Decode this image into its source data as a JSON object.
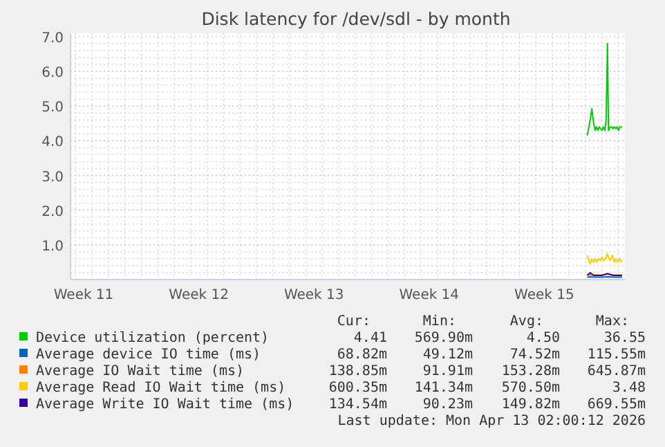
{
  "chart_data": {
    "type": "line",
    "title": "Disk latency for /dev/sdl - by month",
    "xlim": [
      "2026-03-11T16:48",
      "2026-04-14T09:36"
    ],
    "xticks": [
      {
        "value": "2026-03-12T12:00",
        "label": "Week 11"
      },
      {
        "value": "2026-03-19T12:00",
        "label": "Week 12"
      },
      {
        "value": "2026-03-26T12:00",
        "label": "Week 13"
      },
      {
        "value": "2026-04-02T12:00",
        "label": "Week 14"
      },
      {
        "value": "2026-04-09T12:00",
        "label": "Week 15"
      },
      {
        "value": "2026-03-12",
        "label": null
      },
      {
        "value": "2026-03-13",
        "label": null
      },
      {
        "value": "2026-03-14",
        "label": null
      },
      {
        "value": "2026-03-15",
        "label": null
      },
      {
        "value": "2026-03-16",
        "label": null
      },
      {
        "value": "2026-03-17",
        "label": null
      },
      {
        "value": "2026-03-18",
        "label": null
      },
      {
        "value": "2026-03-19",
        "label": null
      },
      {
        "value": "2026-03-20",
        "label": null
      },
      {
        "value": "2026-03-21",
        "label": null
      },
      {
        "value": "2026-03-22",
        "label": null
      },
      {
        "value": "2026-03-23",
        "label": null
      },
      {
        "value": "2026-03-24",
        "label": null
      },
      {
        "value": "2026-03-25",
        "label": null
      },
      {
        "value": "2026-03-26",
        "label": null
      },
      {
        "value": "2026-03-27",
        "label": null
      },
      {
        "value": "2026-03-28",
        "label": null
      },
      {
        "value": "2026-03-29",
        "label": null
      },
      {
        "value": "2026-03-30",
        "label": null
      },
      {
        "value": "2026-03-31",
        "label": null
      },
      {
        "value": "2026-04-01",
        "label": null
      },
      {
        "value": "2026-04-02",
        "label": null
      },
      {
        "value": "2026-04-03",
        "label": null
      },
      {
        "value": "2026-04-04",
        "label": null
      },
      {
        "value": "2026-04-05",
        "label": null
      },
      {
        "value": "2026-04-06",
        "label": null
      },
      {
        "value": "2026-04-07",
        "label": null
      },
      {
        "value": "2026-04-08",
        "label": null
      },
      {
        "value": "2026-04-09",
        "label": null
      },
      {
        "value": "2026-04-10",
        "label": null
      },
      {
        "value": "2026-04-11",
        "label": null
      },
      {
        "value": "2026-04-12",
        "label": null
      },
      {
        "value": "2026-04-13",
        "label": null
      },
      {
        "value": "2026-04-14",
        "label": null
      }
    ],
    "ylim": [
      0,
      7.1
    ],
    "yticks": [
      {
        "value": 1,
        "label": "1.0"
      },
      {
        "value": 2,
        "label": "2.0"
      },
      {
        "value": 3,
        "label": "3.0"
      },
      {
        "value": 4,
        "label": "4.0"
      },
      {
        "value": 5,
        "label": "5.0"
      },
      {
        "value": 6,
        "label": "6.0"
      },
      {
        "value": 7,
        "label": "7.0"
      },
      {
        "value": 0.2,
        "label": null
      },
      {
        "value": 0.4,
        "label": null
      },
      {
        "value": 0.6,
        "label": null
      },
      {
        "value": 0.8,
        "label": null
      },
      {
        "value": 1.2,
        "label": null
      },
      {
        "value": 1.4,
        "label": null
      },
      {
        "value": 1.6,
        "label": null
      },
      {
        "value": 1.8,
        "label": null
      },
      {
        "value": 2.2,
        "label": null
      },
      {
        "value": 2.4,
        "label": null
      },
      {
        "value": 2.6,
        "label": null
      },
      {
        "value": 2.8,
        "label": null
      },
      {
        "value": 3.2,
        "label": null
      },
      {
        "value": 3.4,
        "label": null
      },
      {
        "value": 3.6,
        "label": null
      },
      {
        "value": 3.8,
        "label": null
      },
      {
        "value": 4.2,
        "label": null
      },
      {
        "value": 4.4,
        "label": null
      },
      {
        "value": 4.6,
        "label": null
      },
      {
        "value": 4.8,
        "label": null
      },
      {
        "value": 5.2,
        "label": null
      },
      {
        "value": 5.4,
        "label": null
      },
      {
        "value": 5.6,
        "label": null
      },
      {
        "value": 5.8,
        "label": null
      },
      {
        "value": 6.2,
        "label": null
      },
      {
        "value": 6.4,
        "label": null
      },
      {
        "value": 6.6,
        "label": null
      },
      {
        "value": 6.8,
        "label": null
      }
    ],
    "grid": true,
    "legend": "bottom",
    "series": [
      {
        "name": "Device utilization (percent)",
        "color": "#00cc00",
        "x": [
          "2026-04-12T02:38",
          "2026-04-12T04:05",
          "2026-04-12T06:58",
          "2026-04-12T09:22",
          "2026-04-12T12:00",
          "2026-04-12T14:10",
          "2026-04-12T16:05",
          "2026-04-12T18:14",
          "2026-04-12T20:10",
          "2026-04-12T22:05",
          "2026-04-13T00:14",
          "2026-04-13T02:10",
          "2026-04-13T04:19",
          "2026-04-13T06:14",
          "2026-04-13T08:10",
          "2026-04-13T09:36",
          "2026-04-13T12:14",
          "2026-04-13T14:24",
          "2026-04-13T16:19",
          "2026-04-13T18:14",
          "2026-04-13T20:24",
          "2026-04-13T22:19",
          "2026-04-14T00:14",
          "2026-04-14T02:10",
          "2026-04-14T05:31"
        ],
        "values": [
          4.15,
          4.3,
          4.6,
          4.92,
          4.5,
          4.3,
          4.4,
          4.3,
          4.4,
          4.35,
          4.3,
          4.4,
          4.3,
          4.6,
          6.8,
          4.3,
          4.4,
          4.4,
          4.35,
          4.4,
          4.35,
          4.4,
          4.3,
          4.4,
          4.4
        ]
      },
      {
        "name": "Average device IO time (ms)",
        "color": "#0066b3",
        "x": [
          "2026-04-12T02:38",
          "2026-04-12T06:58",
          "2026-04-12T12:00",
          "2026-04-13T00:00",
          "2026-04-13T08:10",
          "2026-04-13T16:48",
          "2026-04-14T05:31"
        ],
        "values": [
          0.07,
          0.08,
          0.07,
          0.07,
          0.08,
          0.07,
          0.07
        ]
      },
      {
        "name": "Average IO Wait time (ms)",
        "color": "#ff8000",
        "x": [
          "2026-04-12T02:38",
          "2026-04-12T06:58",
          "2026-04-12T12:00",
          "2026-04-13T00:00",
          "2026-04-13T08:10",
          "2026-04-13T16:48",
          "2026-04-14T05:31"
        ],
        "values": [
          0.13,
          0.14,
          0.13,
          0.13,
          0.16,
          0.13,
          0.13
        ]
      },
      {
        "name": "Average Read IO Wait time (ms)",
        "color": "#ffcc00",
        "x": [
          "2026-04-12T02:38",
          "2026-04-12T05:02",
          "2026-04-12T06:58",
          "2026-04-12T09:07",
          "2026-04-12T12:00",
          "2026-04-12T14:10",
          "2026-04-12T16:05",
          "2026-04-12T19:12",
          "2026-04-12T22:05",
          "2026-04-13T00:14",
          "2026-04-13T02:10",
          "2026-04-13T05:17",
          "2026-04-13T08:10",
          "2026-04-13T10:19",
          "2026-04-13T12:14",
          "2026-04-13T15:22",
          "2026-04-13T18:14",
          "2026-04-13T20:24",
          "2026-04-13T23:17",
          "2026-04-14T02:10",
          "2026-04-14T05:31"
        ],
        "values": [
          0.7,
          0.55,
          0.45,
          0.6,
          0.5,
          0.6,
          0.5,
          0.6,
          0.55,
          0.65,
          0.55,
          0.6,
          0.75,
          0.6,
          0.55,
          0.7,
          0.5,
          0.6,
          0.5,
          0.6,
          0.5
        ]
      },
      {
        "name": "Average Write IO Wait time (ms)",
        "color": "#330099",
        "x": [
          "2026-04-12T02:38",
          "2026-04-12T06:58",
          "2026-04-12T12:00",
          "2026-04-13T00:00",
          "2026-04-13T08:10",
          "2026-04-13T16:48",
          "2026-04-14T05:31"
        ],
        "values": [
          0.12,
          0.2,
          0.12,
          0.12,
          0.17,
          0.12,
          0.12
        ]
      }
    ],
    "annotations": [
      "Cur:",
      "Min:",
      "Avg:",
      "Max:",
      "4.41",
      "569.90m",
      "4.50",
      "36.55",
      "68.82m",
      "49.12m",
      "74.52m",
      "115.55m",
      "138.85m",
      "91.91m",
      "153.28m",
      "645.87m",
      "600.35m",
      "141.34m",
      "570.50m",
      "3.48",
      "134.54m",
      "90.23m",
      "149.82m",
      "669.55m",
      "Last update: Mon Apr 13 02:00:12 2026"
    ]
  }
}
